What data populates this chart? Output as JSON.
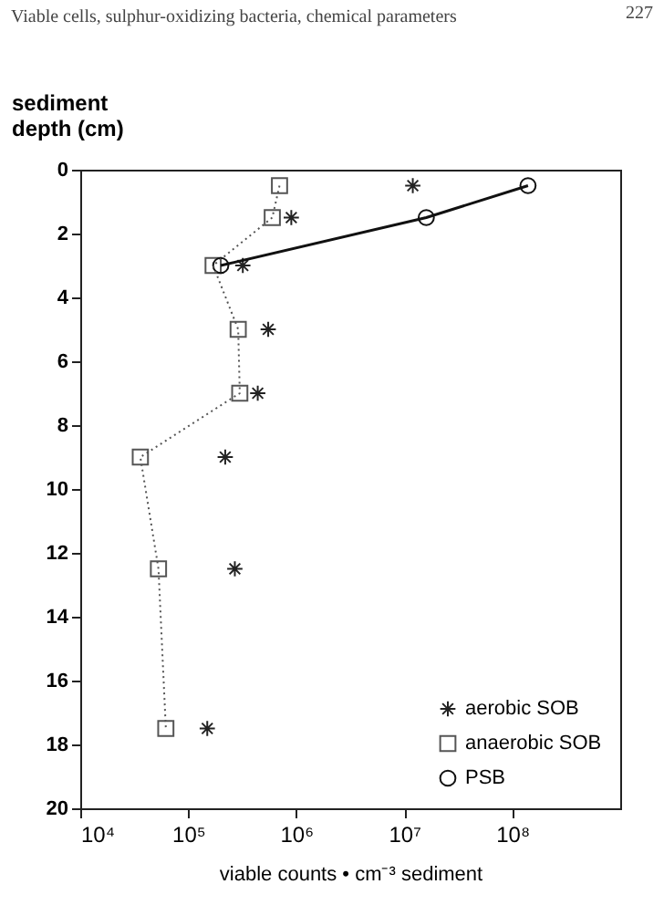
{
  "chart_data": {
    "type": "scatter",
    "title": "Viable cells, sulphur-oxidizing bacteria, chemical parameters",
    "annotations": [
      "227"
    ],
    "xlabel": "viable counts • cm⁻³ sediment",
    "ylabel": "sediment\ndepth (cm)",
    "series": [
      {
        "name": "aerobic SOB",
        "marker": "cross",
        "color": "#222222",
        "x": [
          12000000,
          900000,
          320000,
          550000,
          440000,
          220000,
          270000,
          150000
        ],
        "values": [
          0.5,
          1.5,
          3,
          5,
          7,
          9,
          12.5,
          17.5
        ]
      },
      {
        "name": "anaerobic SOB",
        "type": "line",
        "marker": "square",
        "line_style": "dotted",
        "color": "#555555",
        "x": [
          700000,
          600000,
          170000,
          290000,
          300000,
          36000,
          53000,
          62000
        ],
        "values": [
          0.5,
          1.5,
          3,
          5,
          7,
          9,
          12.5,
          17.5
        ]
      },
      {
        "name": "PSB",
        "type": "line",
        "marker": "circle",
        "line_style": "solid",
        "color": "#111111",
        "x": [
          140000000,
          16000000,
          200000
        ],
        "values": [
          0.5,
          1.5,
          3
        ]
      }
    ],
    "log": "x",
    "xlim": [
      10000,
      1000000000
    ],
    "xticks": [
      {
        "value": 10000,
        "label": "10⁴"
      },
      {
        "value": 100000,
        "label": "10⁵"
      },
      {
        "value": 1000000,
        "label": "10⁶"
      },
      {
        "value": 10000000,
        "label": "10⁷"
      },
      {
        "value": 100000000,
        "label": "10⁸"
      }
    ],
    "ylim": [
      20,
      0
    ],
    "yticks": [
      0,
      2,
      4,
      6,
      8,
      10,
      12,
      14,
      16,
      18,
      20
    ],
    "grid": false,
    "legend": "bottom right"
  }
}
